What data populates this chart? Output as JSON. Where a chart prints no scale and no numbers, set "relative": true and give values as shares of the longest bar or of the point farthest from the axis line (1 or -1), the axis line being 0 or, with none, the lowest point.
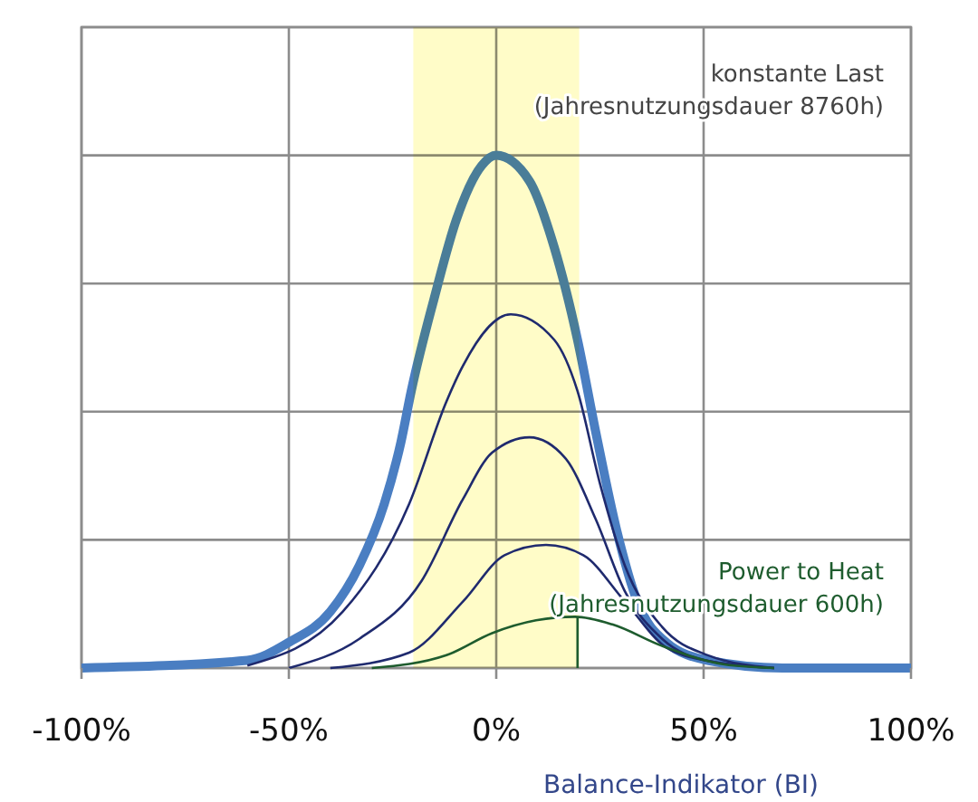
{
  "chart_data": {
    "type": "line",
    "relative": true,
    "xlabel": "Balance-Indikator (BI)",
    "xlim": [
      -100,
      100
    ],
    "xticks": [
      {
        "value": -100,
        "label": "-100%"
      },
      {
        "value": -50,
        "label": "-50%"
      },
      {
        "value": 0,
        "label": "0%"
      },
      {
        "value": 50,
        "label": "50%"
      },
      {
        "value": 100,
        "label": "100%"
      }
    ],
    "grid": true,
    "line_style": "solid",
    "bands": [
      {
        "axis": "x",
        "from": -20,
        "to": 20,
        "color": "#fffcc8"
      }
    ],
    "annotations": [
      "konstante Last\n(Jahresnutzungsdauer 8760h)",
      "Power to Heat\n(Jahresnutzungsdauer 600h)"
    ],
    "series": [
      {
        "color": "#4a7ec2",
        "x": [
          -100,
          -60,
          -50,
          -40,
          -33,
          -27,
          -23,
          -20.5,
          -15,
          -9.6,
          -3.5,
          0,
          8,
          14,
          19.6,
          24,
          29,
          34,
          41,
          51,
          69,
          100
        ],
        "values": [
          0,
          0.015,
          0.05,
          0.11,
          0.2,
          0.32,
          0.44,
          0.54,
          0.72,
          0.875,
          0.98,
          1,
          0.95,
          0.82,
          0.64,
          0.46,
          0.27,
          0.13,
          0.05,
          0.015,
          0,
          0
        ]
      },
      {
        "color": "#1f2a6e",
        "x": [
          -60,
          -37,
          -21,
          -12,
          -8,
          3.5,
          14,
          19.6,
          25,
          31,
          40,
          51,
          67
        ],
        "values": [
          0.005,
          0.11,
          0.32,
          0.52,
          0.59,
          0.69,
          0.64,
          0.54,
          0.36,
          0.2,
          0.08,
          0.025,
          0
        ]
      },
      {
        "color": "#1f2a6e",
        "x": [
          -50,
          -33,
          -18,
          -8,
          -1,
          8,
          16.6,
          24,
          31,
          40,
          51,
          67
        ],
        "values": [
          0,
          0.057,
          0.17,
          0.33,
          0.42,
          0.45,
          0.41,
          0.29,
          0.15,
          0.057,
          0.014,
          0
        ]
      },
      {
        "color": "#1f2a6e",
        "x": [
          -40,
          -21,
          -8,
          2,
          12,
          21,
          31,
          41,
          51,
          67
        ],
        "values": [
          0,
          0.03,
          0.13,
          0.22,
          0.24,
          0.22,
          0.13,
          0.04,
          0.014,
          0
        ]
      },
      {
        "color": "#1e5c2e",
        "x": [
          -30,
          -12,
          -1,
          9.6,
          19,
          28,
          40,
          55,
          67
        ],
        "values": [
          0,
          0.025,
          0.068,
          0.093,
          0.1,
          0.085,
          0.043,
          0.007,
          0
        ]
      },
      {
        "color": "#1e5c2e",
        "x": [
          19.6,
          19.6
        ],
        "values": [
          0,
          0.1
        ]
      }
    ]
  }
}
